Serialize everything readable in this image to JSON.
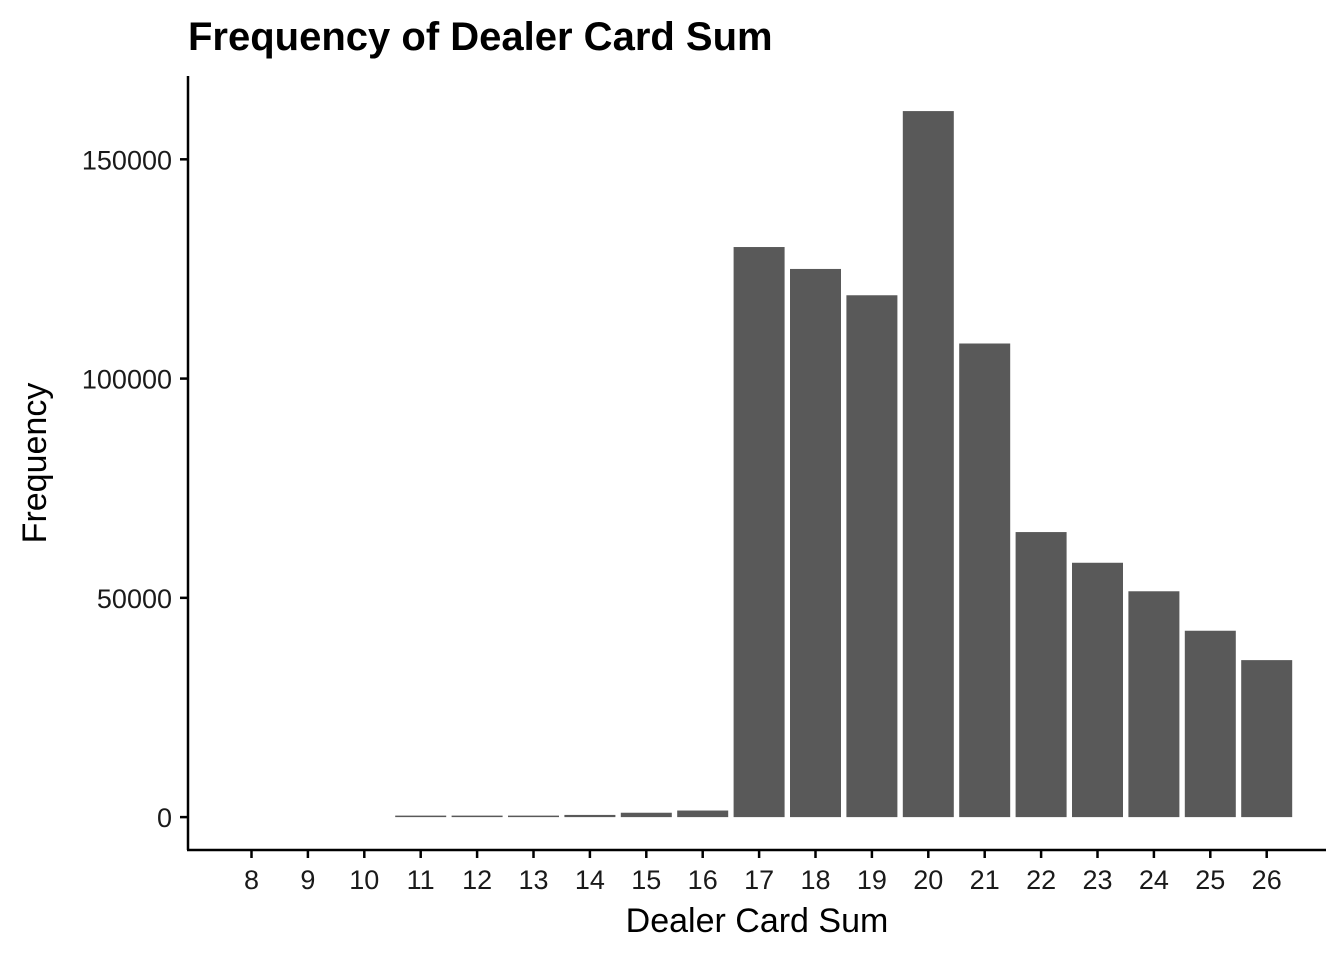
{
  "chart_data": {
    "type": "bar",
    "title": "Frequency of Dealer Card Sum",
    "xlabel": "Dealer Card Sum",
    "ylabel": "Frequency",
    "categories": [
      "8",
      "9",
      "10",
      "11",
      "12",
      "13",
      "14",
      "15",
      "16",
      "17",
      "18",
      "19",
      "20",
      "21",
      "22",
      "23",
      "24",
      "25",
      "26"
    ],
    "values": [
      0,
      0,
      0,
      100,
      150,
      200,
      500,
      1000,
      1500,
      130000,
      125000,
      119000,
      161000,
      108000,
      65000,
      58000,
      51500,
      42500,
      35800
    ],
    "yticks": [
      0,
      50000,
      100000,
      150000
    ],
    "ytick_labels": [
      "0",
      "50000",
      "100000",
      "150000"
    ],
    "ylim": [
      -7500,
      169000
    ],
    "grid": false,
    "legend": "none",
    "bar_color": "#595959"
  }
}
